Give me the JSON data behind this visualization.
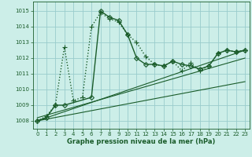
{
  "xlabel": "Graphe pression niveau de la mer (hPa)",
  "bg_color": "#cceee8",
  "grid_color": "#99cccc",
  "line_color": "#1a5c2a",
  "xlim": [
    -0.5,
    23.5
  ],
  "ylim": [
    1007.5,
    1015.6
  ],
  "yticks": [
    1008,
    1009,
    1010,
    1011,
    1012,
    1013,
    1014,
    1015
  ],
  "xticks": [
    0,
    1,
    2,
    3,
    4,
    5,
    6,
    7,
    8,
    9,
    10,
    11,
    12,
    13,
    14,
    15,
    16,
    17,
    18,
    19,
    20,
    21,
    22,
    23
  ],
  "series": [
    {
      "x": [
        0,
        1,
        2,
        3,
        4,
        5,
        6,
        7,
        8,
        9,
        10,
        11,
        12,
        13,
        14,
        15,
        16,
        17,
        18,
        19,
        20,
        21,
        22,
        23
      ],
      "y": [
        1008.0,
        1008.3,
        1009.0,
        1012.7,
        1009.3,
        1009.5,
        1014.0,
        1014.9,
        1014.5,
        1014.3,
        1013.5,
        1013.0,
        1012.1,
        1011.6,
        1011.5,
        1011.8,
        1011.2,
        1011.7,
        1011.2,
        1011.5,
        1012.3,
        1012.5,
        1012.4,
        1012.5
      ],
      "marker": "+",
      "markersize": 4,
      "linewidth": 1.0,
      "linestyle": ":"
    },
    {
      "x": [
        0,
        1,
        2,
        3,
        6,
        7,
        8,
        9,
        10,
        11,
        12,
        13,
        14,
        15,
        16,
        17,
        18,
        19,
        20,
        21,
        22,
        23
      ],
      "y": [
        1008.0,
        1008.2,
        1009.0,
        1009.0,
        1009.5,
        1015.0,
        1014.6,
        1014.4,
        1013.5,
        1012.0,
        1011.6,
        1011.6,
        1011.5,
        1011.8,
        1011.6,
        1011.5,
        1011.3,
        1011.5,
        1012.3,
        1012.5,
        1012.4,
        1012.5
      ],
      "marker": "D",
      "markersize": 3,
      "linewidth": 1.0,
      "linestyle": "-"
    },
    {
      "x": [
        0,
        23
      ],
      "y": [
        1008.0,
        1012.5
      ],
      "marker": "none",
      "markersize": 0,
      "linewidth": 0.8,
      "linestyle": "-"
    },
    {
      "x": [
        0,
        23
      ],
      "y": [
        1008.2,
        1012.0
      ],
      "marker": "none",
      "markersize": 0,
      "linewidth": 0.8,
      "linestyle": "-"
    },
    {
      "x": [
        0,
        23
      ],
      "y": [
        1008.0,
        1010.5
      ],
      "marker": "none",
      "markersize": 0,
      "linewidth": 0.8,
      "linestyle": "-"
    }
  ]
}
